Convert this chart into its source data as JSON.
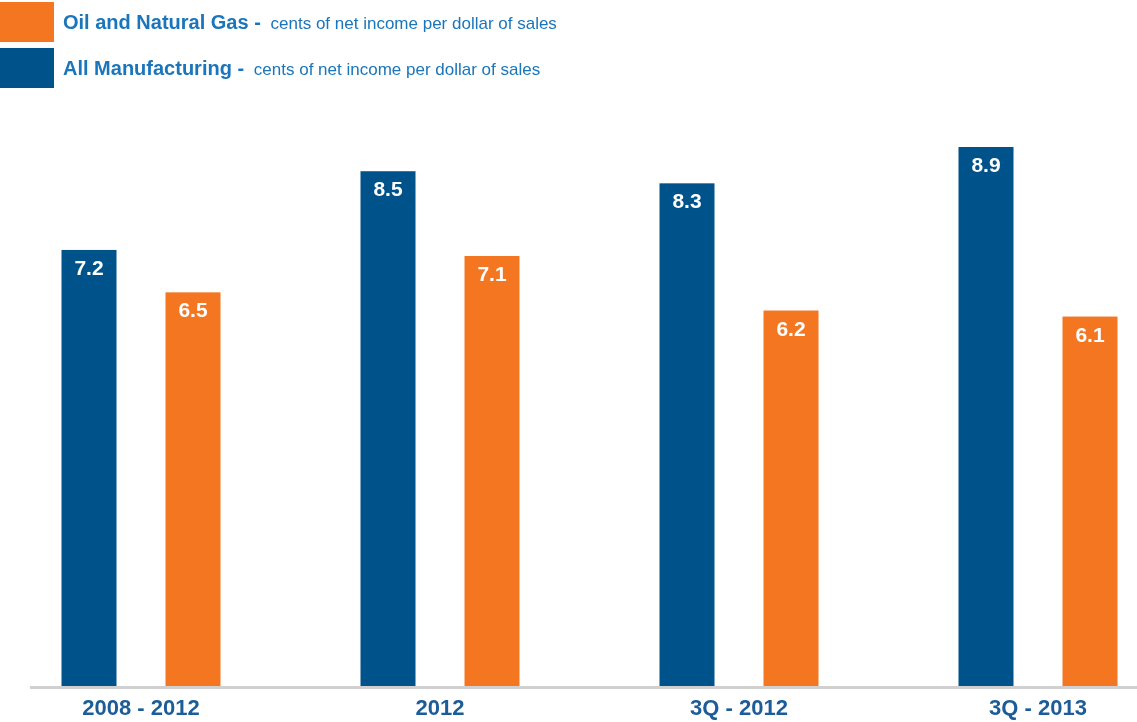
{
  "chart_data": {
    "type": "bar",
    "categories": [
      "2008 - 2012",
      "2012",
      "3Q - 2012",
      "3Q - 2013"
    ],
    "series": [
      {
        "name": "All Manufacturing - cents of net income per dollar of sales",
        "color": "#00528a",
        "values": [
          7.2,
          8.5,
          8.3,
          8.9
        ]
      },
      {
        "name": "Oil and Natural Gas - cents of net income per dollar of sales",
        "color": "#f47621",
        "values": [
          6.5,
          7.1,
          6.2,
          6.1
        ]
      }
    ],
    "data_labels": true,
    "legend": "top left"
  }
}
